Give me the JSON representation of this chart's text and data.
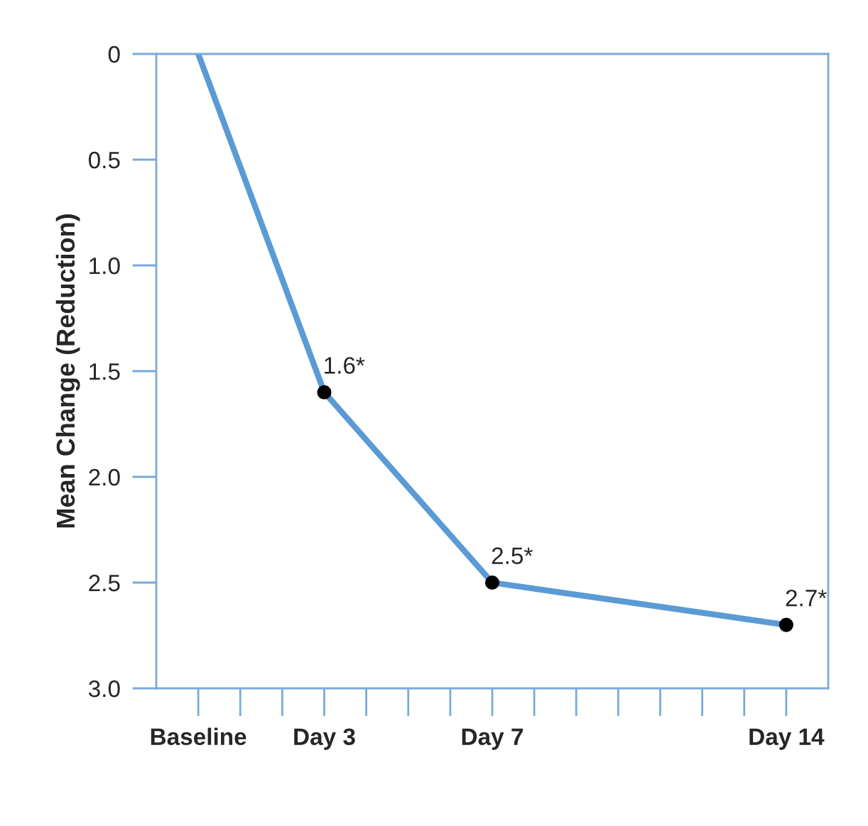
{
  "chart_data": {
    "type": "line",
    "ylabel": "Mean Change (Reduction)",
    "categories": [
      "Baseline",
      null,
      null,
      "Day 3",
      null,
      null,
      null,
      "Day 7",
      null,
      null,
      null,
      null,
      null,
      null,
      "Day 14"
    ],
    "series": [
      {
        "color": "#5b9bd5",
        "values": [
          0,
          null,
          null,
          1.6,
          null,
          null,
          null,
          2.5,
          null,
          null,
          null,
          null,
          null,
          null,
          2.7
        ]
      },
      {
        "type": "scatter",
        "color": "#000000",
        "values": [
          null,
          null,
          null,
          1.6,
          null,
          null,
          null,
          2.5,
          null,
          null,
          null,
          null,
          null,
          null,
          2.7
        ],
        "value_labels": [
          null,
          null,
          null,
          "1.6*",
          null,
          null,
          null,
          "2.5*",
          null,
          null,
          null,
          null,
          null,
          null,
          "2.7*"
        ]
      }
    ],
    "ylim": [
      3.0,
      0
    ],
    "yticks": [
      0,
      0.5,
      {
        "value": 1.0,
        "label": "1.0"
      },
      1.5,
      {
        "value": 2.0,
        "label": "2.0"
      },
      2.5,
      {
        "value": 3.0,
        "label": "3.0"
      }
    ],
    "grid": false,
    "legend": false
  }
}
